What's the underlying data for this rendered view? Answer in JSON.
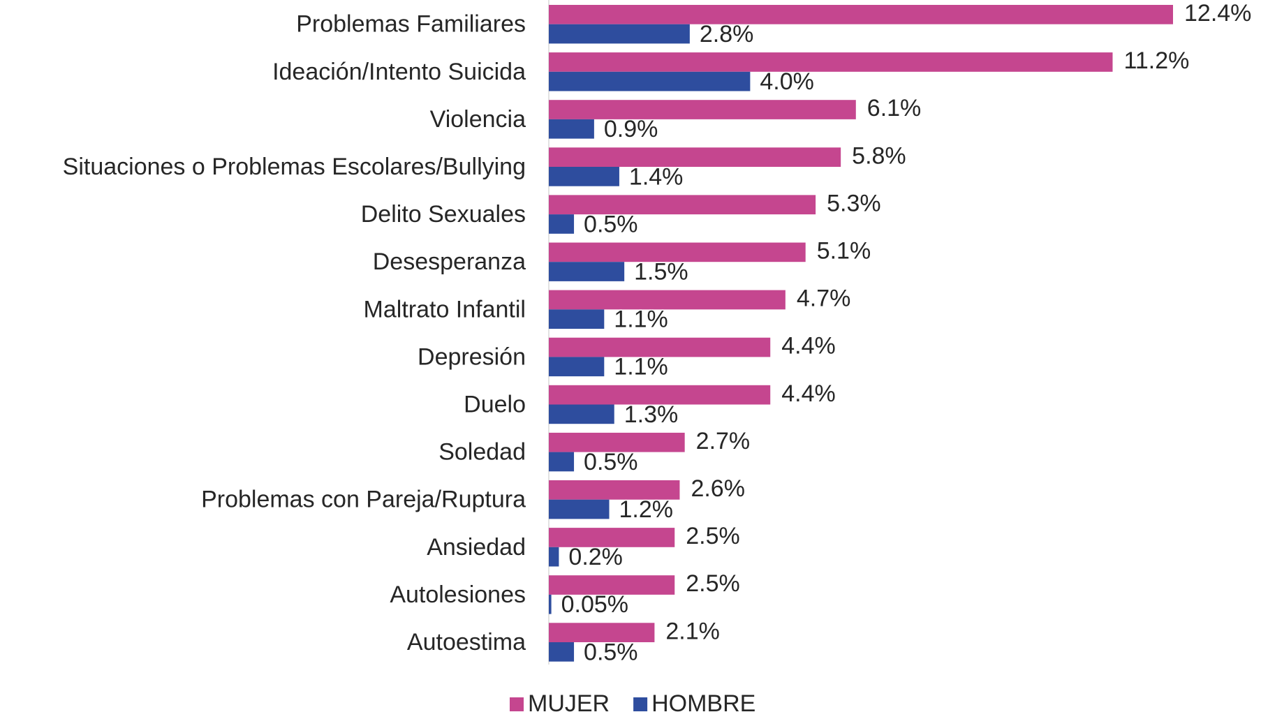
{
  "chart_data": {
    "type": "bar",
    "orientation": "horizontal",
    "categories": [
      "Problemas Familiares",
      "Ideación/Intento Suicida",
      "Violencia",
      "Situaciones o Problemas Escolares/Bullying",
      "Delito Sexuales",
      "Desesperanza",
      "Maltrato Infantil",
      "Depresión",
      "Duelo",
      "Soledad",
      "Problemas con Pareja/Ruptura",
      "Ansiedad",
      "Autolesiones",
      "Autoestima"
    ],
    "series": [
      {
        "name": "MUJER",
        "color": "#c5468f",
        "values": [
          12.4,
          11.2,
          6.1,
          5.8,
          5.3,
          5.1,
          4.7,
          4.4,
          4.4,
          2.7,
          2.6,
          2.5,
          2.5,
          2.1
        ],
        "value_labels": [
          "12.4%",
          "11.2%",
          "6.1%",
          "5.8%",
          "5.3%",
          "5.1%",
          "4.7%",
          "4.4%",
          "4.4%",
          "2.7%",
          "2.6%",
          "2.5%",
          "2.5%",
          "2.1%"
        ]
      },
      {
        "name": "HOMBRE",
        "color": "#2e4d9e",
        "values": [
          2.8,
          4.0,
          0.9,
          1.4,
          0.5,
          1.5,
          1.1,
          1.1,
          1.3,
          0.5,
          1.2,
          0.2,
          0.05,
          0.5
        ],
        "value_labels": [
          "2.8%",
          "4.0%",
          "0.9%",
          "1.4%",
          "0.5%",
          "1.5%",
          "1.1%",
          "1.1%",
          "1.3%",
          "0.5%",
          "1.2%",
          "0.2%",
          "0.05%",
          "0.5%"
        ]
      }
    ],
    "legend": "bottom"
  }
}
